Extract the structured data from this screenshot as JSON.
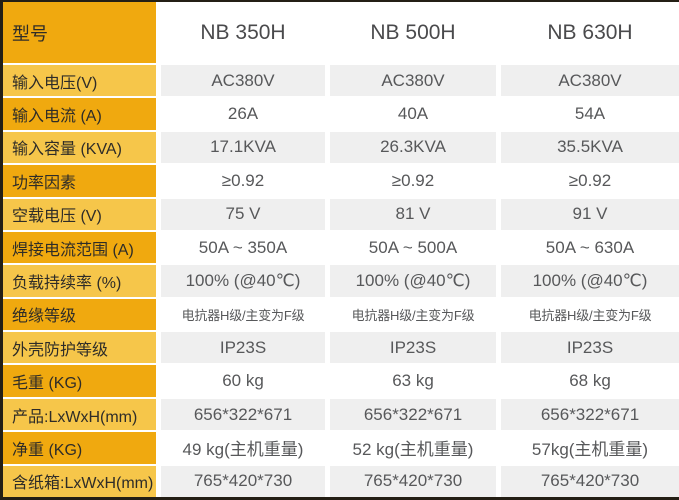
{
  "table": {
    "header": {
      "label": "型号",
      "models": [
        "NB 350H",
        "NB 500H",
        "NB 630H"
      ]
    },
    "rows": [
      {
        "label": "输入电压(V)",
        "values": [
          "AC380V",
          "AC380V",
          "AC380V"
        ]
      },
      {
        "label": "输入电流 (A)",
        "values": [
          "26A",
          "40A",
          "54A"
        ]
      },
      {
        "label": "输入容量 (KVA)",
        "values": [
          "17.1KVA",
          "26.3KVA",
          "35.5KVA"
        ]
      },
      {
        "label": "功率因素",
        "values": [
          "≥0.92",
          "≥0.92",
          "≥0.92"
        ]
      },
      {
        "label": "空载电压 (V)",
        "values": [
          "75 V",
          "81 V",
          "91 V"
        ]
      },
      {
        "label": "焊接电流范围 (A)",
        "values": [
          "50A ~ 350A",
          "50A ~ 500A",
          "50A ~ 630A"
        ]
      },
      {
        "label": "负载持续率 (%)",
        "values": [
          "100% (@40℃)",
          "100% (@40℃)",
          "100% (@40℃)"
        ]
      },
      {
        "label": "绝缘等级",
        "values": [
          "电抗器H级/主变为F级",
          "电抗器H级/主变为F级",
          "电抗器H级/主变为F级"
        ]
      },
      {
        "label": "外壳防护等级",
        "values": [
          "IP23S",
          "IP23S",
          "IP23S"
        ]
      },
      {
        "label": "毛重 (KG)",
        "values": [
          "60 kg",
          "63 kg",
          "68 kg"
        ]
      },
      {
        "label": "产品:LxWxH(mm)",
        "values": [
          "656*322*671",
          "656*322*671",
          "656*322*671"
        ]
      },
      {
        "label": "净重 (KG)",
        "values": [
          "49 kg(主机重量)",
          "52 kg(主机重量)",
          "57kg(主机重量)"
        ]
      },
      {
        "label": "含纸箱:LxWxH(mm)",
        "values": [
          "765*420*730",
          "765*420*730",
          "765*420*730"
        ]
      }
    ],
    "colors": {
      "label_dark": "#f0a90f",
      "label_light": "#f6c64a",
      "row_shade": "#efefef",
      "border": "#241f15"
    }
  }
}
